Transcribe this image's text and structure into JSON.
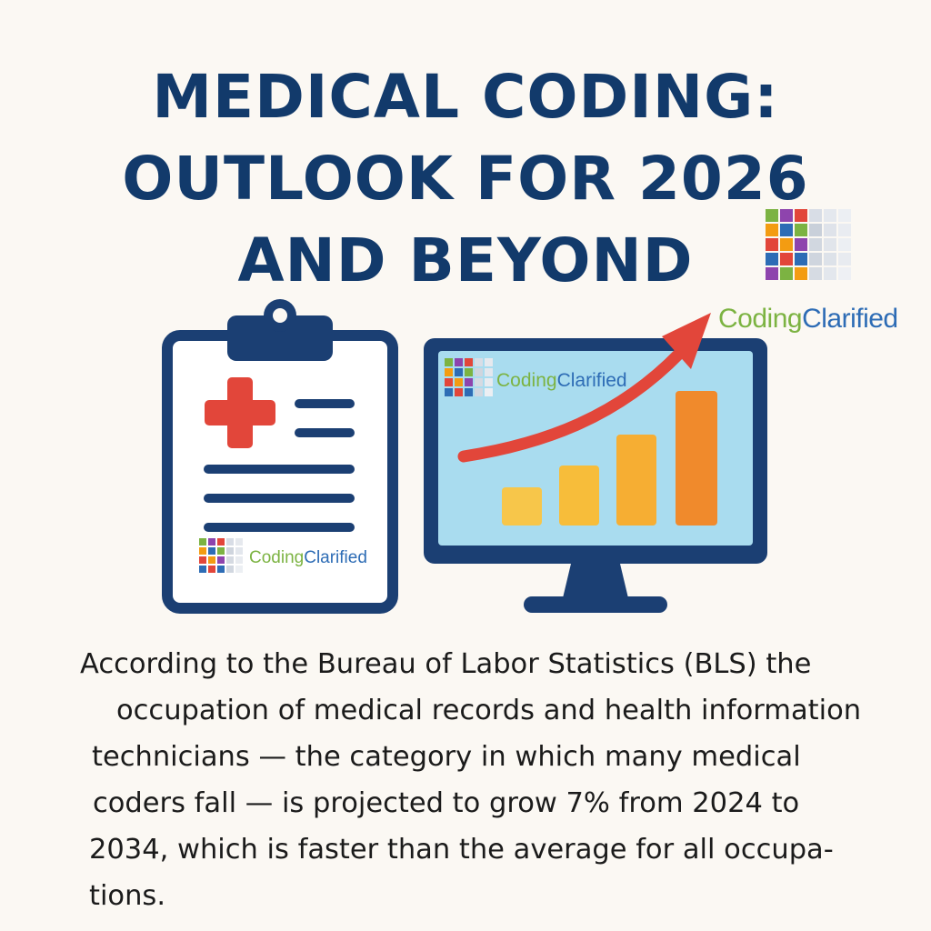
{
  "title": {
    "line1": "MEDICAL CODING:",
    "line2": "OUTLOOK FOR 2026",
    "line3": "AND BEYOND"
  },
  "brand": {
    "part1": "Coding",
    "part2": "Clarified"
  },
  "colors": {
    "title": "#123a6b",
    "navy": "#1b3f73",
    "cross_red": "#e2463a",
    "screen": "#a9dcef",
    "bar_yellow": "#f7c64a",
    "bar_orange": "#f08a2c",
    "arrow": "#e2463a",
    "brand_green": "#7cb342",
    "brand_blue": "#2d6cb5"
  },
  "icons": [
    "clipboard-icon",
    "medical-cross-icon",
    "monitor-icon",
    "growth-bar-chart-icon",
    "up-trend-arrow-icon",
    "coding-clarified-logo"
  ],
  "body": {
    "line1": "According to the Bureau of Labor Statistics (BLS) the",
    "line2": "occupation of medical records and health information",
    "line3": "technicians — the category in which many medical",
    "line4": "coders fall — is projected to grow 7% from 2024 to",
    "line5": "2034, which is faster than the average for all occupa-",
    "line6": "tions."
  }
}
